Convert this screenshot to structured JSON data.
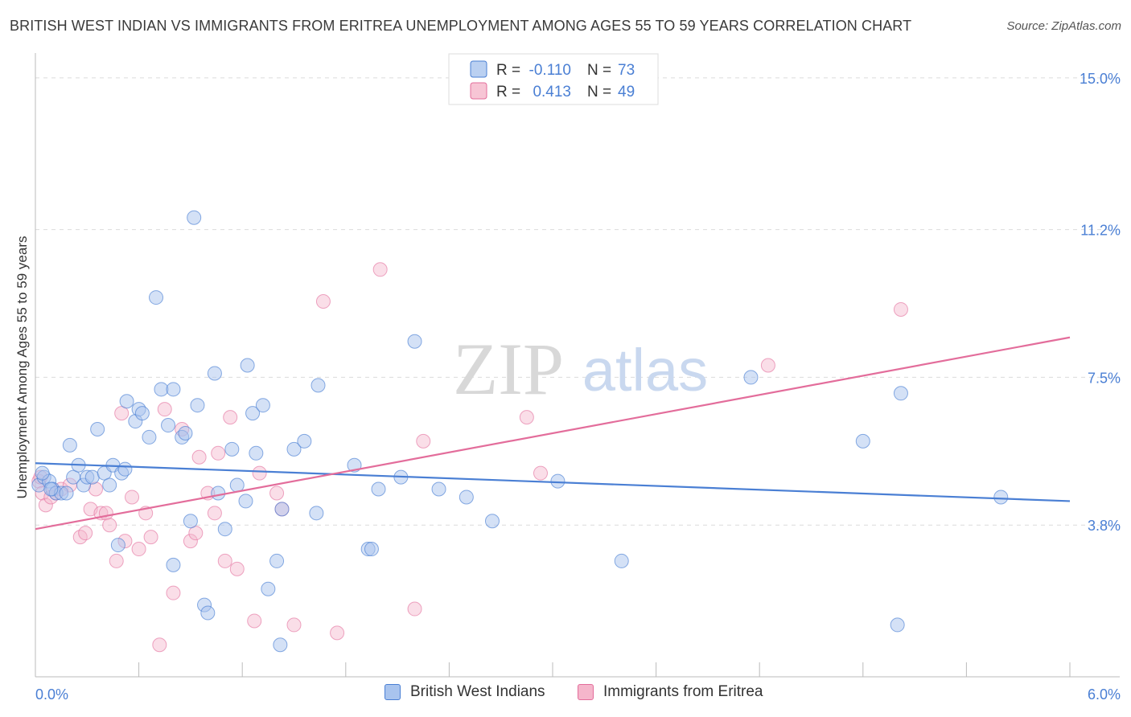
{
  "title": "BRITISH WEST INDIAN VS IMMIGRANTS FROM ERITREA UNEMPLOYMENT AMONG AGES 55 TO 59 YEARS CORRELATION CHART",
  "source": "Source: ZipAtlas.com",
  "watermark": {
    "zip": "ZIP",
    "atlas": "atlas"
  },
  "colors": {
    "blue": "#4a7fd4",
    "blue_fill": "#a9c4ee",
    "pink": "#e36d9b",
    "pink_fill": "#f5b6cb",
    "axis_label": "#4a7fd4",
    "grid": "#dcdcdc"
  },
  "legend_top": {
    "rows": [
      {
        "r_label": "R =",
        "r_value": "-0.110",
        "n_label": "N =",
        "n_value": "73"
      },
      {
        "r_label": "R =",
        "r_value": "0.413",
        "n_label": "N =",
        "n_value": "49"
      }
    ]
  },
  "legend_bottom": [
    "British West Indians",
    "Immigrants from Eritrea"
  ],
  "chart_data": {
    "type": "scatter",
    "title": "BRITISH WEST INDIAN VS IMMIGRANTS FROM ERITREA UNEMPLOYMENT AMONG AGES 55 TO 59 YEARS CORRELATION CHART",
    "xlabel": "",
    "ylabel": "Unemployment Among Ages 55 to 59 years",
    "xlim": [
      0,
      6
    ],
    "ylim": [
      0,
      15.5
    ],
    "x_tick_labels": [
      "0.0%",
      "6.0%"
    ],
    "y_ticks": [
      3.8,
      7.5,
      11.2,
      15.0
    ],
    "y_tick_labels": [
      "3.8%",
      "7.5%",
      "11.2%",
      "15.0%"
    ],
    "grid": true,
    "legend_position": "top-center",
    "series": [
      {
        "name": "British West Indians",
        "color": "#4a7fd4",
        "r": -0.11,
        "n": 73,
        "trend": {
          "x": [
            0,
            6
          ],
          "y": [
            5.35,
            4.4
          ]
        },
        "points": [
          [
            0.02,
            4.8
          ],
          [
            0.05,
            5.0
          ],
          [
            0.08,
            4.9
          ],
          [
            0.1,
            4.7
          ],
          [
            0.12,
            4.6
          ],
          [
            0.15,
            4.6
          ],
          [
            0.2,
            5.8
          ],
          [
            0.22,
            5.0
          ],
          [
            0.25,
            5.3
          ],
          [
            0.28,
            4.8
          ],
          [
            0.3,
            5.0
          ],
          [
            0.33,
            5.0
          ],
          [
            0.36,
            6.2
          ],
          [
            0.4,
            5.1
          ],
          [
            0.43,
            4.8
          ],
          [
            0.45,
            5.3
          ],
          [
            0.48,
            3.3
          ],
          [
            0.5,
            5.1
          ],
          [
            0.52,
            5.2
          ],
          [
            0.53,
            6.9
          ],
          [
            0.58,
            6.4
          ],
          [
            0.6,
            6.7
          ],
          [
            0.62,
            6.6
          ],
          [
            0.66,
            6.0
          ],
          [
            0.7,
            9.5
          ],
          [
            0.73,
            7.2
          ],
          [
            0.77,
            6.3
          ],
          [
            0.8,
            7.2
          ],
          [
            0.8,
            2.8
          ],
          [
            0.85,
            6.0
          ],
          [
            0.87,
            6.1
          ],
          [
            0.9,
            3.9
          ],
          [
            0.92,
            11.5
          ],
          [
            0.94,
            6.8
          ],
          [
            0.98,
            1.8
          ],
          [
            1.0,
            1.6
          ],
          [
            1.04,
            7.6
          ],
          [
            1.06,
            4.6
          ],
          [
            1.1,
            3.7
          ],
          [
            1.14,
            5.7
          ],
          [
            1.17,
            4.8
          ],
          [
            1.22,
            4.4
          ],
          [
            1.23,
            7.8
          ],
          [
            1.26,
            6.6
          ],
          [
            1.28,
            5.6
          ],
          [
            1.32,
            6.8
          ],
          [
            1.35,
            2.2
          ],
          [
            1.4,
            2.9
          ],
          [
            1.42,
            0.8
          ],
          [
            1.43,
            4.2
          ],
          [
            1.5,
            5.7
          ],
          [
            1.56,
            5.9
          ],
          [
            1.63,
            4.1
          ],
          [
            1.64,
            7.3
          ],
          [
            1.85,
            5.3
          ],
          [
            1.93,
            3.2
          ],
          [
            1.95,
            3.2
          ],
          [
            1.99,
            4.7
          ],
          [
            2.12,
            5.0
          ],
          [
            2.2,
            8.4
          ],
          [
            2.34,
            4.7
          ],
          [
            2.5,
            4.5
          ],
          [
            2.65,
            3.9
          ],
          [
            3.03,
            4.9
          ],
          [
            3.4,
            2.9
          ],
          [
            4.15,
            7.5
          ],
          [
            4.8,
            5.9
          ],
          [
            5.0,
            1.3
          ],
          [
            5.02,
            7.1
          ],
          [
            5.6,
            4.5
          ],
          [
            0.04,
            5.1
          ],
          [
            0.09,
            4.7
          ],
          [
            0.18,
            4.6
          ]
        ]
      },
      {
        "name": "Immigrants from Eritrea",
        "color": "#e36d9b",
        "r": 0.413,
        "n": 49,
        "trend": {
          "x": [
            0,
            6
          ],
          "y": [
            3.7,
            8.5
          ]
        },
        "points": [
          [
            0.02,
            4.9
          ],
          [
            0.04,
            4.6
          ],
          [
            0.06,
            4.3
          ],
          [
            0.09,
            4.5
          ],
          [
            0.12,
            4.6
          ],
          [
            0.15,
            4.7
          ],
          [
            0.2,
            4.8
          ],
          [
            0.26,
            3.5
          ],
          [
            0.29,
            3.6
          ],
          [
            0.32,
            4.2
          ],
          [
            0.35,
            4.7
          ],
          [
            0.38,
            4.1
          ],
          [
            0.41,
            4.1
          ],
          [
            0.43,
            3.8
          ],
          [
            0.47,
            2.9
          ],
          [
            0.5,
            6.6
          ],
          [
            0.52,
            3.4
          ],
          [
            0.56,
            4.5
          ],
          [
            0.6,
            3.2
          ],
          [
            0.64,
            4.1
          ],
          [
            0.67,
            3.5
          ],
          [
            0.72,
            0.8
          ],
          [
            0.75,
            6.7
          ],
          [
            0.8,
            2.1
          ],
          [
            0.85,
            6.2
          ],
          [
            0.9,
            3.4
          ],
          [
            0.93,
            3.6
          ],
          [
            0.95,
            5.5
          ],
          [
            1.0,
            4.6
          ],
          [
            1.04,
            4.1
          ],
          [
            1.06,
            5.6
          ],
          [
            1.1,
            2.9
          ],
          [
            1.13,
            6.5
          ],
          [
            1.17,
            2.7
          ],
          [
            1.27,
            1.4
          ],
          [
            1.3,
            5.1
          ],
          [
            1.4,
            4.6
          ],
          [
            1.43,
            4.2
          ],
          [
            1.5,
            1.3
          ],
          [
            1.67,
            9.4
          ],
          [
            1.75,
            1.1
          ],
          [
            2.0,
            10.2
          ],
          [
            2.2,
            1.7
          ],
          [
            2.25,
            5.9
          ],
          [
            2.85,
            6.5
          ],
          [
            2.93,
            5.1
          ],
          [
            4.25,
            7.8
          ],
          [
            5.02,
            9.2
          ],
          [
            0.03,
            5.0
          ]
        ]
      }
    ]
  }
}
